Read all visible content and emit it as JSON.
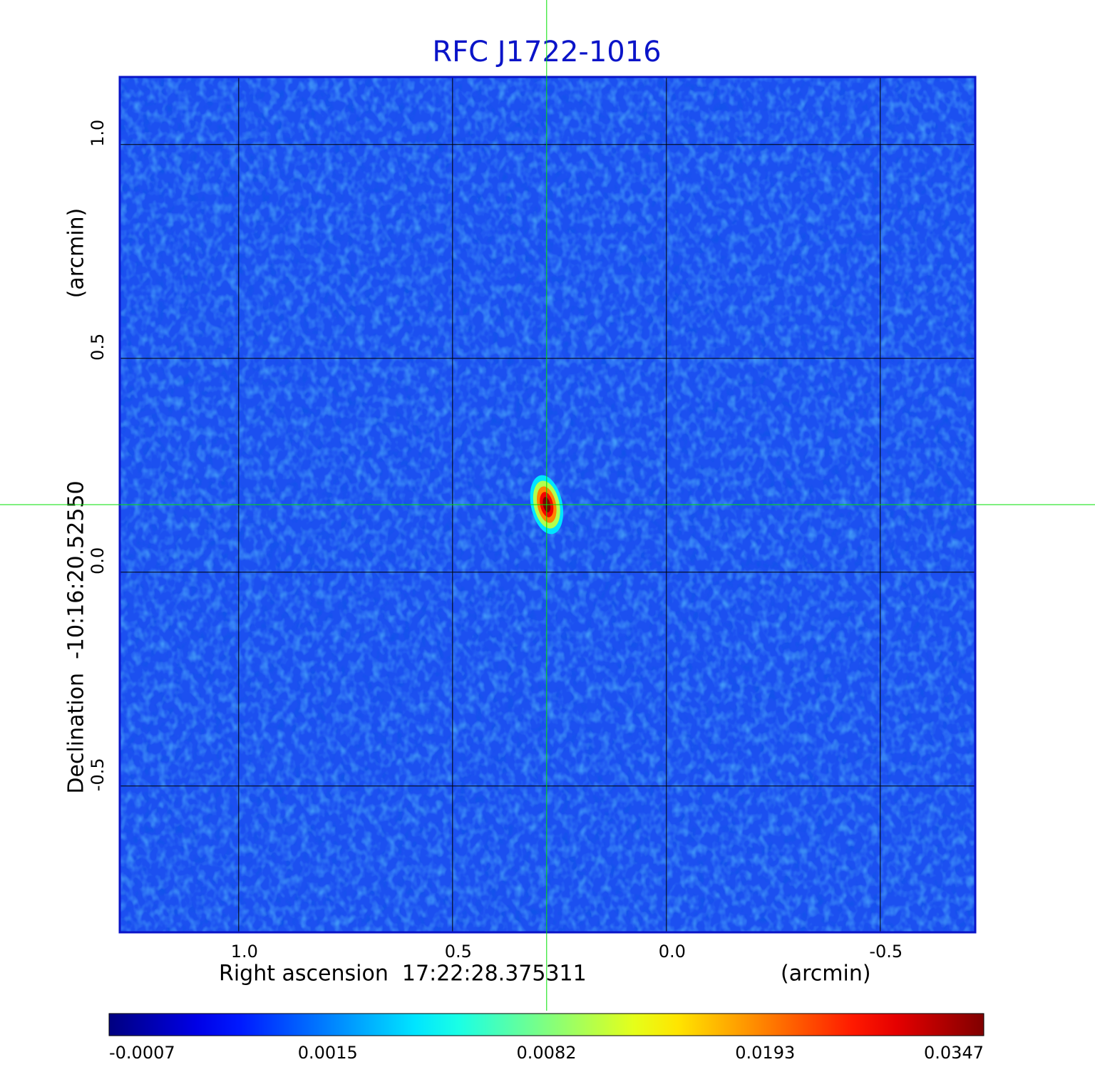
{
  "chart_data": {
    "type": "image",
    "title": "RFC J1722-1016",
    "xlabel": "Right ascension  17:22:28.375311",
    "xunit": "(arcmin)",
    "ylabel": "Declination  -10:16:20.52550",
    "yunit": "(arcmin)",
    "xlim": [
      1.278,
      -0.722
    ],
    "ylim": [
      -0.842,
      1.158
    ],
    "xticks": [
      {
        "value": 1,
        "label": "1.0"
      },
      0.5,
      {
        "value": 0,
        "label": "0.0"
      },
      -0.5
    ],
    "yticks": [
      {
        "value": 1,
        "label": "1.0"
      },
      0.5,
      {
        "value": 0,
        "label": "0.0"
      },
      -0.5
    ],
    "grid": true,
    "colormap": "jet",
    "crosshair": {
      "x": 0.28,
      "y": 0.158,
      "color": "#00e000"
    },
    "source": {
      "x": 0.28,
      "y": 0.158,
      "peak": 0.0347
    },
    "colorbar": {
      "ticks": [
        -0.0007,
        0.0015,
        0.0082,
        0.0193,
        0.0347
      ]
    }
  }
}
